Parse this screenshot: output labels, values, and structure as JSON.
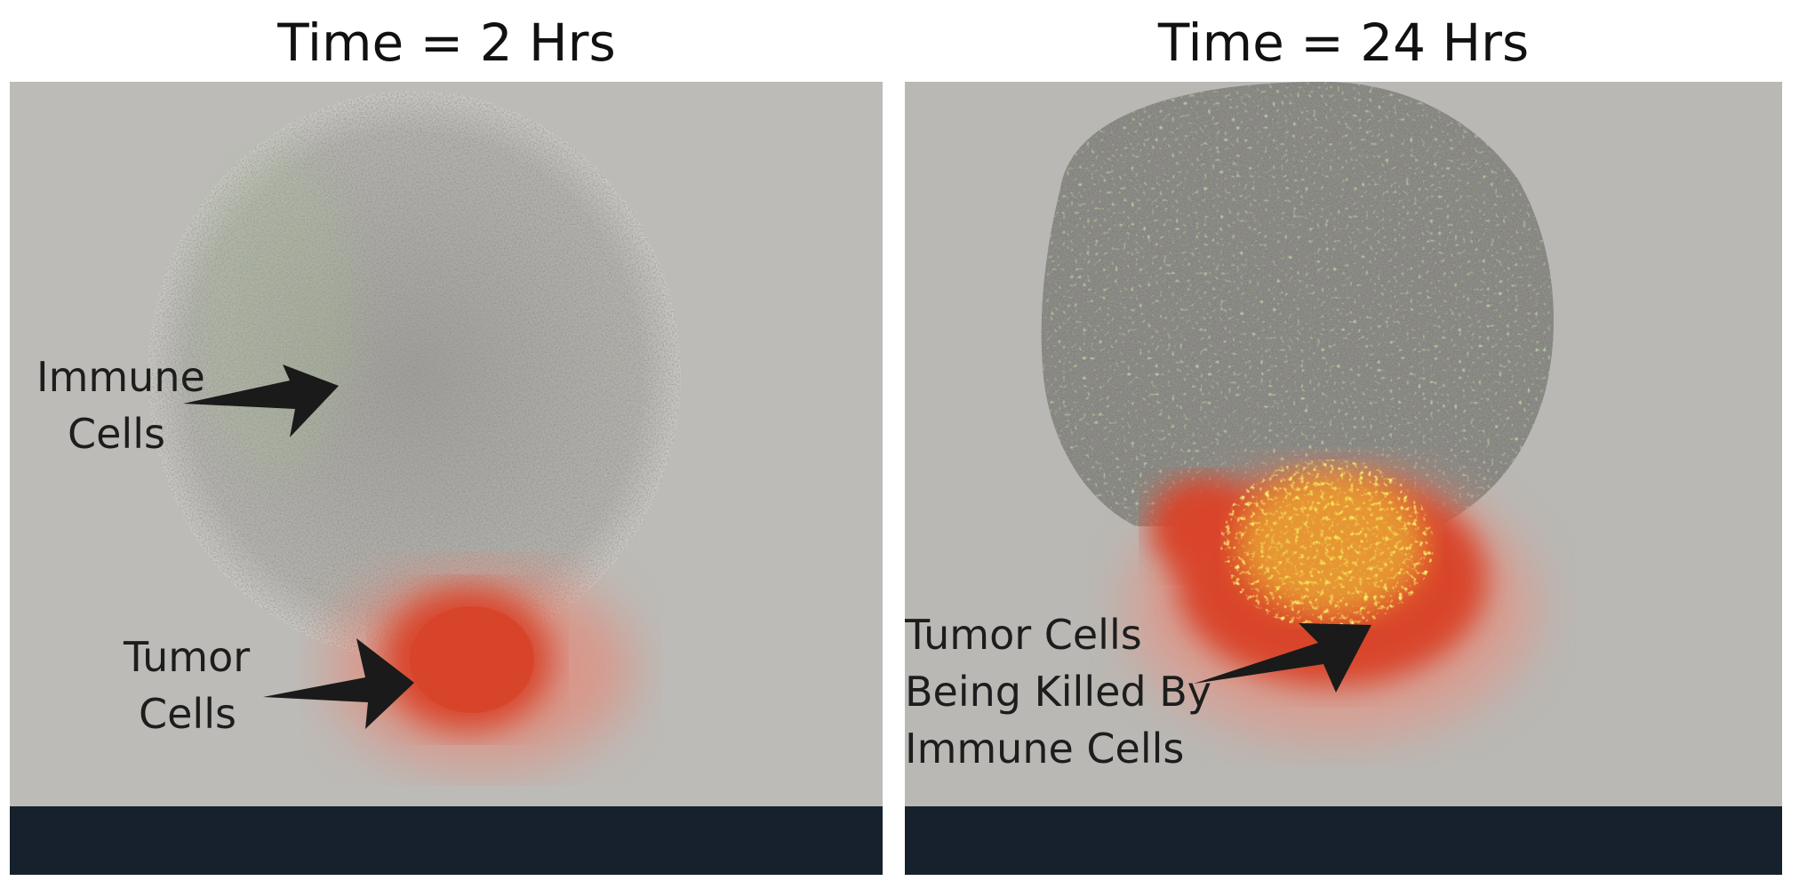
{
  "panels": [
    {
      "title": "Time = 2 Hrs",
      "labels": [
        {
          "lines": [
            "Immune",
            "Cells"
          ]
        },
        {
          "lines": [
            "Tumor",
            "Cells"
          ]
        }
      ]
    },
    {
      "title": "Time = 24 Hrs",
      "labels": [
        {
          "lines": [
            "Tumor Cells",
            "Being Killed By",
            "Immune Cells"
          ]
        }
      ]
    }
  ],
  "colors": {
    "background": "#b9b8b4",
    "cell_cluster": "#9c9b96",
    "tumor_red": "#e0462c",
    "killed_yellow": "#f4e63a",
    "immune_green": "#8fd36a",
    "bottom_bar": "#17212e"
  }
}
